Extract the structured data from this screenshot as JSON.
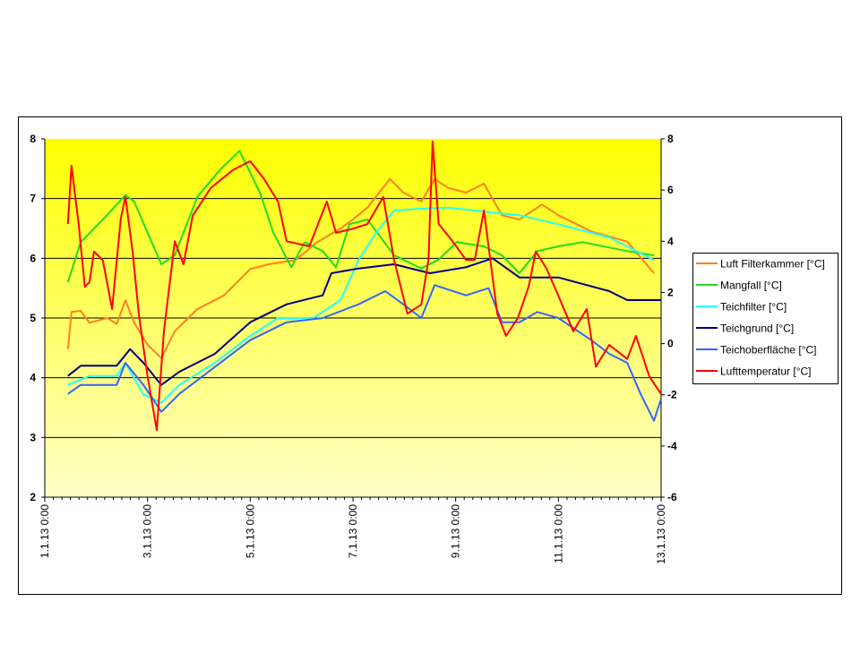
{
  "chart_data": {
    "type": "line",
    "title": "",
    "xlabel": "",
    "ylabel": "",
    "x_unit": "days since 1.1.13 0:00",
    "xlim": [
      0,
      12
    ],
    "ylim_left": [
      2,
      8
    ],
    "ylim_right": [
      -6,
      8
    ],
    "x_ticks": [
      "1.1.13 0:00",
      "3.1.13 0:00",
      "5.1.13 0:00",
      "7.1.13 0:00",
      "9.1.13 0:00",
      "11.1.13 0:00",
      "13.1.13 0:00"
    ],
    "y_ticks_left": [
      "8",
      "7",
      "6",
      "5",
      "4",
      "3",
      "2"
    ],
    "y_ticks_right": [
      "8",
      "6",
      "4",
      "2",
      "0",
      "-2",
      "-4",
      "-6"
    ],
    "grid": true,
    "legend_position": "right",
    "series": [
      {
        "name": "Luft Filterkammer [°C]",
        "color": "#ff8020",
        "axis": "left",
        "x": [
          0.45,
          0.52,
          0.7,
          0.87,
          1.22,
          1.4,
          1.57,
          1.74,
          2.0,
          2.27,
          2.53,
          2.97,
          3.49,
          4.0,
          4.36,
          4.88,
          5.32,
          5.76,
          6.0,
          6.28,
          6.72,
          6.98,
          7.33,
          7.59,
          7.85,
          8.2,
          8.55,
          8.9,
          9.24,
          9.68,
          10.0,
          10.64,
          11.34,
          11.86
        ],
        "y": [
          4.48,
          5.1,
          5.12,
          4.92,
          5.0,
          4.9,
          5.3,
          4.92,
          4.55,
          4.33,
          4.78,
          5.15,
          5.38,
          5.82,
          5.9,
          5.97,
          6.28,
          6.5,
          6.65,
          6.85,
          7.33,
          7.1,
          6.95,
          7.33,
          7.18,
          7.1,
          7.25,
          6.72,
          6.65,
          6.9,
          6.72,
          6.45,
          6.28,
          5.75
        ]
      },
      {
        "name": "Mangfall [°C]",
        "color": "#20dd20",
        "axis": "left",
        "x": [
          0.45,
          0.7,
          0.87,
          1.22,
          1.57,
          1.74,
          2.0,
          2.27,
          2.53,
          2.97,
          3.4,
          3.79,
          4.19,
          4.45,
          4.8,
          5.06,
          5.41,
          5.67,
          5.93,
          6.28,
          6.8,
          7.33,
          7.67,
          8.02,
          8.55,
          8.9,
          9.24,
          9.59,
          10.0,
          10.47,
          11.34,
          11.86
        ],
        "y": [
          5.6,
          6.27,
          6.42,
          6.73,
          7.06,
          6.95,
          6.43,
          5.9,
          6.05,
          7.03,
          7.47,
          7.8,
          7.1,
          6.43,
          5.85,
          6.27,
          6.12,
          5.85,
          6.57,
          6.65,
          6.05,
          5.83,
          5.98,
          6.27,
          6.2,
          6.05,
          5.75,
          6.12,
          6.2,
          6.27,
          6.12,
          6.05
        ]
      },
      {
        "name": "Teichfilter [°C]",
        "color": "#20ffff",
        "axis": "left",
        "x": [
          0.45,
          0.87,
          1.4,
          1.57,
          1.92,
          2.27,
          2.62,
          3.31,
          4.0,
          4.54,
          5.23,
          5.76,
          6.11,
          6.45,
          6.8,
          7.33,
          7.85,
          8.55,
          9.24,
          10.0,
          10.99,
          11.86
        ],
        "y": [
          3.88,
          4.03,
          4.03,
          4.25,
          3.72,
          3.58,
          3.88,
          4.25,
          4.7,
          5.0,
          5.0,
          5.3,
          5.97,
          6.43,
          6.8,
          6.83,
          6.85,
          6.78,
          6.72,
          6.57,
          6.35,
          5.97
        ]
      },
      {
        "name": "Teichgrund [°C]",
        "color": "#000080",
        "axis": "left",
        "x": [
          0.45,
          0.7,
          1.4,
          1.66,
          1.92,
          2.27,
          2.62,
          3.31,
          4.0,
          4.71,
          5.41,
          5.58,
          6.11,
          6.8,
          7.5,
          8.2,
          8.72,
          9.24,
          10.0,
          10.99,
          11.34,
          12.0
        ],
        "y": [
          4.03,
          4.2,
          4.2,
          4.48,
          4.25,
          3.88,
          4.1,
          4.4,
          4.93,
          5.23,
          5.38,
          5.75,
          5.83,
          5.9,
          5.75,
          5.85,
          6.0,
          5.68,
          5.68,
          5.45,
          5.3,
          5.3
        ]
      },
      {
        "name": "Teichoberfläche [°C]",
        "color": "#3366ff",
        "axis": "left",
        "x": [
          0.45,
          0.7,
          1.4,
          1.57,
          1.92,
          2.27,
          2.62,
          3.31,
          4.0,
          4.71,
          5.41,
          6.11,
          6.63,
          6.98,
          7.33,
          7.59,
          8.2,
          8.64,
          8.9,
          9.24,
          9.59,
          10.0,
          10.64,
          10.99,
          11.34,
          11.6,
          11.86,
          12.0
        ],
        "y": [
          3.73,
          3.88,
          3.88,
          4.25,
          3.88,
          3.43,
          3.73,
          4.18,
          4.63,
          4.93,
          5.0,
          5.23,
          5.45,
          5.23,
          5.0,
          5.55,
          5.38,
          5.5,
          4.93,
          4.93,
          5.1,
          5.0,
          4.63,
          4.4,
          4.25,
          3.73,
          3.28,
          3.65
        ]
      },
      {
        "name": "Lufttemperatur [°C]",
        "color": "#ff0000",
        "axis": "right",
        "x": [
          0.45,
          0.52,
          0.66,
          0.78,
          0.87,
          0.96,
          1.13,
          1.31,
          1.48,
          1.57,
          1.71,
          1.83,
          2.0,
          2.18,
          2.32,
          2.53,
          2.7,
          2.88,
          3.23,
          3.66,
          4.0,
          4.27,
          4.54,
          4.71,
          5.15,
          5.49,
          5.67,
          6.02,
          6.28,
          6.59,
          6.8,
          7.06,
          7.33,
          7.47,
          7.55,
          7.67,
          7.94,
          8.2,
          8.37,
          8.55,
          8.81,
          8.98,
          9.21,
          9.42,
          9.56,
          9.77,
          10.0,
          10.29,
          10.55,
          10.73,
          10.99,
          11.34,
          11.51,
          11.77,
          12.0
        ],
        "y": [
          4.67,
          6.95,
          4.67,
          2.22,
          2.4,
          3.6,
          3.25,
          1.35,
          4.9,
          5.73,
          3.6,
          1.17,
          -1.28,
          -3.38,
          0.48,
          4.0,
          3.1,
          5.0,
          6.08,
          6.78,
          7.13,
          6.43,
          5.55,
          4.0,
          3.8,
          5.55,
          4.33,
          4.5,
          4.67,
          5.73,
          3.27,
          1.17,
          1.53,
          3.27,
          7.9,
          4.67,
          4.0,
          3.27,
          3.27,
          5.2,
          1.17,
          0.3,
          1.0,
          2.22,
          3.6,
          2.93,
          1.87,
          0.48,
          1.35,
          -0.9,
          -0.05,
          -0.6,
          0.3,
          -1.28,
          -1.97
        ]
      }
    ]
  }
}
